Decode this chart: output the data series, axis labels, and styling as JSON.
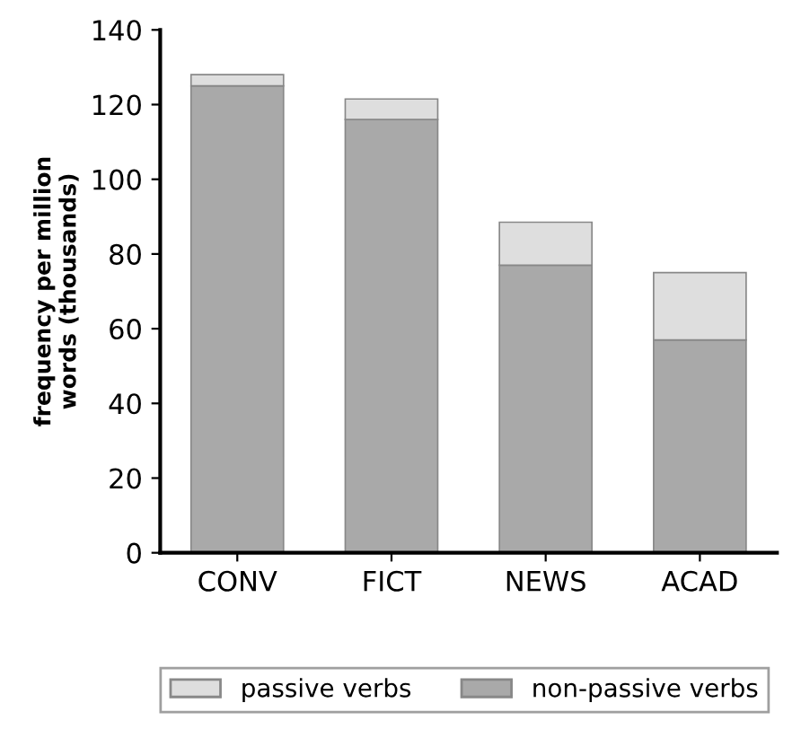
{
  "chart_data": {
    "type": "bar",
    "stacked": true,
    "ylabel": "frequency per million\nwords (thousands)",
    "categories": [
      "CONV",
      "FICT",
      "NEWS",
      "ACAD"
    ],
    "series": [
      {
        "name": "non-passive verbs",
        "color": "#a9a9a9",
        "values": [
          125,
          116,
          77,
          57
        ]
      },
      {
        "name": "passive verbs",
        "color": "#dedede",
        "values": [
          3,
          5.5,
          11.5,
          18
        ]
      }
    ],
    "ylim": [
      0,
      140
    ],
    "yticks": [
      0,
      20,
      40,
      60,
      80,
      100,
      120,
      140
    ],
    "grid": false,
    "legend": "bottom"
  }
}
